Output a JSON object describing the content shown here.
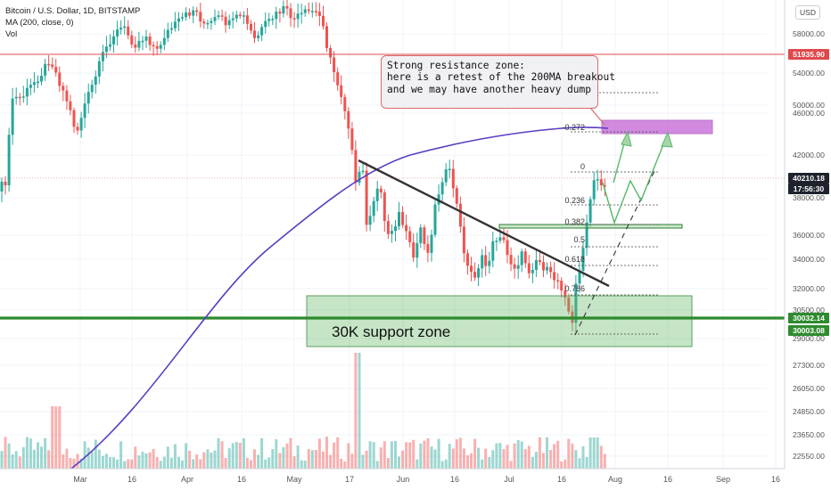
{
  "chart_data": {
    "type": "candlestick",
    "symbol_line": "Bitcoin / U.S. Dollar, 1D, BITSTAMP",
    "ma_line": "MA (200, close, 0)",
    "vol_line": "Vol",
    "currency": "USD",
    "y_ticks": [
      "58000.00",
      "54000.00",
      "50000.00",
      "46000.00",
      "42000.00",
      "38000.00",
      "36000.00",
      "34000.00",
      "32000.00",
      "30500.00",
      "29000.00",
      "27300.00",
      "26050.00",
      "24850.00",
      "23650.00",
      "22550.00"
    ],
    "x_ticks": [
      "Mar",
      "16",
      "Apr",
      "16",
      "May",
      "17",
      "Jun",
      "16",
      "Jul",
      "16",
      "Aug",
      "16",
      "Sep",
      "16"
    ],
    "price_labels": [
      {
        "text": "51935.90",
        "kind": "red"
      },
      {
        "text": "40210.18",
        "kind": "dark"
      },
      {
        "text": "17:56:30",
        "kind": "dark"
      },
      {
        "text": "30032.14",
        "kind": "green"
      },
      {
        "text": "30003.08",
        "kind": "green"
      }
    ],
    "fib_labels": [
      "-0.272",
      "0",
      "0.236",
      "0.382",
      "0.5",
      "0.618",
      "0.786"
    ],
    "support_label": "30K support zone",
    "callout_lines": [
      "Strong resistance zone:",
      "here is a retest of the 200MA breakout",
      "and we may have another heavy dump"
    ],
    "colors": {
      "up": "#26a69a",
      "down": "#ef5350",
      "ma": "#5b3cc4",
      "resistance": "#c05ad3",
      "support": "#2e8b2e"
    }
  }
}
